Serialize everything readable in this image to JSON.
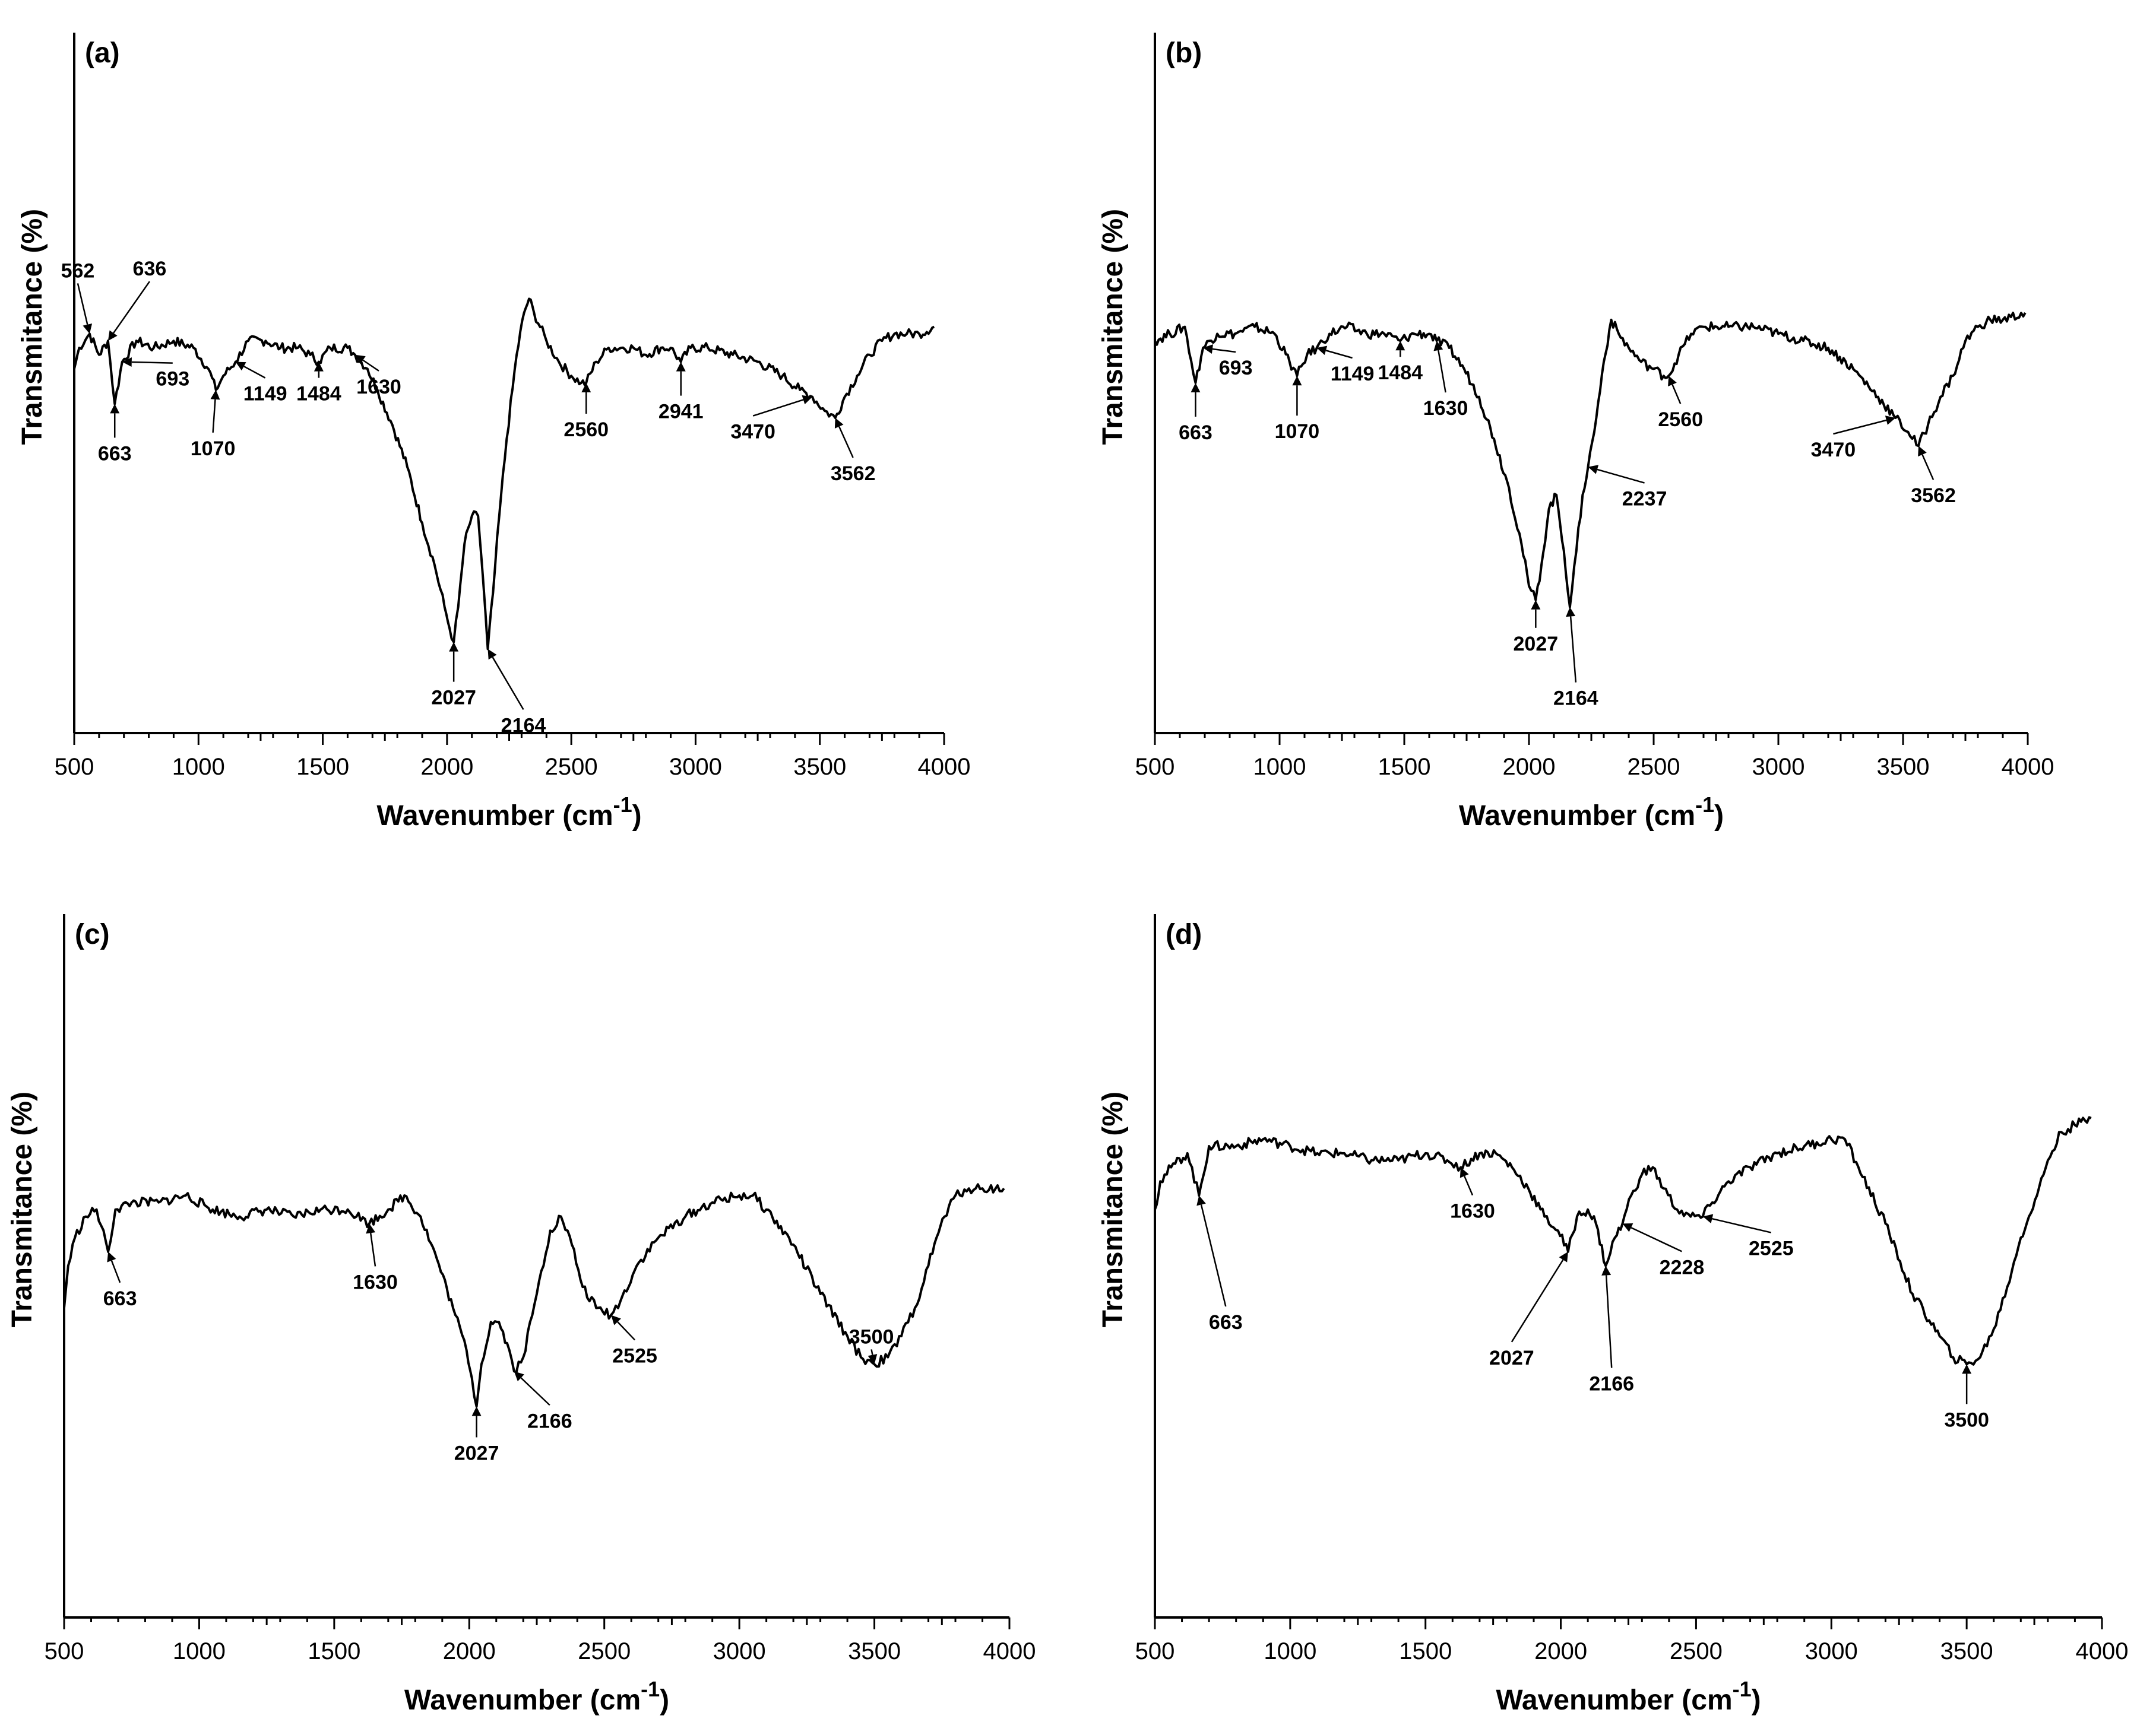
{
  "chart_data": [
    {
      "type": "line",
      "panel_label": "(a)",
      "xlabel": "Wavenumber (cm",
      "xlabel_sup": "-1",
      "xlabel_close": ")",
      "ylabel": "Transmitance (%)",
      "xlim": [
        500,
        4000
      ],
      "ylim": [
        0,
        100
      ],
      "x_ticks": [
        "500",
        "1000",
        "1500",
        "2000",
        "2500",
        "3000",
        "3500",
        "4000"
      ],
      "series": [
        {
          "name": "spectrum (a)",
          "x": [
            500,
            520,
            562,
            600,
            636,
            663,
            693,
            750,
            820,
            900,
            980,
            1040,
            1070,
            1100,
            1149,
            1200,
            1270,
            1330,
            1400,
            1450,
            1484,
            1530,
            1600,
            1630,
            1680,
            1720,
            1780,
            1840,
            1900,
            1950,
            1990,
            2010,
            2027,
            2045,
            2070,
            2100,
            2125,
            2145,
            2164,
            2185,
            2210,
            2240,
            2280,
            2310,
            2330,
            2350,
            2400,
            2450,
            2500,
            2540,
            2560,
            2600,
            2650,
            2700,
            2750,
            2800,
            2860,
            2900,
            2941,
            2980,
            3050,
            3150,
            3250,
            3350,
            3420,
            3470,
            3520,
            3562,
            3600,
            3650,
            3700,
            3750,
            3800,
            3850,
            3900,
            3960
          ],
          "y": [
            52,
            55,
            57,
            54,
            56,
            47,
            53,
            56,
            55,
            56,
            55,
            52,
            49,
            51,
            53,
            56,
            56,
            55,
            55,
            54,
            53,
            55,
            55,
            54,
            52,
            49,
            44,
            38,
            30,
            24,
            18,
            15,
            13,
            18,
            27,
            31,
            31,
            22,
            12,
            20,
            31,
            42,
            54,
            60,
            62,
            60,
            56,
            53,
            51,
            50,
            50,
            53,
            55,
            55,
            55,
            54,
            55,
            55,
            53,
            55,
            55,
            54,
            53,
            51,
            49,
            48,
            46,
            45,
            48,
            51,
            54,
            56,
            57,
            57,
            57,
            58
          ]
        }
      ],
      "annotations": [
        {
          "label": "562",
          "x": 562,
          "y": 57
        },
        {
          "label": "636",
          "x": 636,
          "y": 56
        },
        {
          "label": "663",
          "x": 663,
          "y": 47
        },
        {
          "label": "693",
          "x": 693,
          "y": 53
        },
        {
          "label": "1070",
          "x": 1070,
          "y": 49
        },
        {
          "label": "1149",
          "x": 1149,
          "y": 53
        },
        {
          "label": "1484",
          "x": 1484,
          "y": 53
        },
        {
          "label": "1630",
          "x": 1630,
          "y": 54
        },
        {
          "label": "2027",
          "x": 2027,
          "y": 13
        },
        {
          "label": "2164",
          "x": 2164,
          "y": 12
        },
        {
          "label": "2560",
          "x": 2560,
          "y": 50
        },
        {
          "label": "2941",
          "x": 2941,
          "y": 53
        },
        {
          "label": "3470",
          "x": 3470,
          "y": 48
        },
        {
          "label": "3562",
          "x": 3562,
          "y": 45
        }
      ]
    },
    {
      "type": "line",
      "panel_label": "(b)",
      "xlabel": "Wavenumber (cm",
      "xlabel_sup": "-1",
      "xlabel_close": ")",
      "ylabel": "Transmitance (%)",
      "xlim": [
        500,
        4000
      ],
      "ylim": [
        0,
        100
      ],
      "x_ticks": [
        "500",
        "1000",
        "1500",
        "2000",
        "2500",
        "3000",
        "3500",
        "4000"
      ],
      "series": [
        {
          "name": "spectrum (b)",
          "x": [
            500,
            560,
            620,
            663,
            693,
            750,
            820,
            900,
            980,
            1040,
            1070,
            1110,
            1149,
            1200,
            1270,
            1350,
            1420,
            1484,
            1540,
            1600,
            1630,
            1680,
            1740,
            1800,
            1860,
            1920,
            1970,
            2000,
            2027,
            2050,
            2080,
            2110,
            2140,
            2164,
            2190,
            2215,
            2237,
            2270,
            2300,
            2330,
            2360,
            2400,
            2450,
            2500,
            2540,
            2560,
            2600,
            2650,
            2700,
            2800,
            2900,
            3000,
            3100,
            3200,
            3300,
            3400,
            3470,
            3520,
            3562,
            3600,
            3650,
            3700,
            3750,
            3800,
            3850,
            3900,
            3990
          ],
          "y": [
            56,
            57,
            58,
            50,
            55,
            57,
            57,
            58,
            57,
            53,
            51,
            54,
            55,
            57,
            58,
            57,
            57,
            56,
            57,
            57,
            56,
            55,
            52,
            48,
            42,
            35,
            27,
            21,
            19,
            24,
            32,
            34,
            26,
            18,
            26,
            34,
            38,
            45,
            53,
            59,
            57,
            55,
            53,
            52,
            51,
            51,
            54,
            57,
            58,
            58,
            58,
            57,
            56,
            55,
            52,
            48,
            45,
            43,
            41,
            44,
            48,
            51,
            56,
            58,
            59,
            59,
            60
          ]
        }
      ],
      "annotations": [
        {
          "label": "663",
          "x": 663,
          "y": 50
        },
        {
          "label": "693",
          "x": 693,
          "y": 55
        },
        {
          "label": "1070",
          "x": 1070,
          "y": 51
        },
        {
          "label": "1149",
          "x": 1149,
          "y": 55
        },
        {
          "label": "1484",
          "x": 1484,
          "y": 56
        },
        {
          "label": "1630",
          "x": 1630,
          "y": 56
        },
        {
          "label": "2027",
          "x": 2027,
          "y": 19
        },
        {
          "label": "2164",
          "x": 2164,
          "y": 18
        },
        {
          "label": "2237",
          "x": 2237,
          "y": 38
        },
        {
          "label": "2560",
          "x": 2560,
          "y": 51
        },
        {
          "label": "3470",
          "x": 3470,
          "y": 45
        },
        {
          "label": "3562",
          "x": 3562,
          "y": 41
        }
      ]
    },
    {
      "type": "line",
      "panel_label": "(c)",
      "xlabel": "Wavenumber (cm",
      "xlabel_sup": "-1",
      "xlabel_close": ")",
      "ylabel": "Transmitance (%)",
      "xlim": [
        500,
        4000
      ],
      "ylim": [
        0,
        100
      ],
      "x_ticks": [
        "500",
        "1000",
        "1500",
        "2000",
        "2500",
        "3000",
        "3500",
        "4000"
      ],
      "series": [
        {
          "name": "spectrum (c)",
          "x": [
            500,
            515,
            540,
            580,
            620,
            663,
            690,
            750,
            850,
            950,
            1050,
            1150,
            1250,
            1350,
            1450,
            1550,
            1630,
            1700,
            1760,
            1820,
            1880,
            1940,
            1990,
            2010,
            2027,
            2045,
            2080,
            2110,
            2140,
            2166,
            2200,
            2250,
            2300,
            2340,
            2380,
            2420,
            2470,
            2525,
            2560,
            2620,
            2700,
            2800,
            2900,
            3000,
            3050,
            3100,
            3200,
            3300,
            3400,
            3450,
            3500,
            3550,
            3600,
            3650,
            3700,
            3730,
            3760,
            3800,
            3850,
            3900,
            3980
          ],
          "y": [
            44,
            50,
            54,
            57,
            58,
            52,
            58,
            59,
            59,
            60,
            58,
            57,
            58,
            57,
            58,
            58,
            56,
            58,
            60,
            57,
            51,
            44,
            38,
            34,
            30,
            36,
            42,
            42,
            39,
            35,
            37,
            46,
            55,
            57,
            53,
            47,
            44,
            43,
            45,
            50,
            54,
            57,
            59,
            60,
            60,
            58,
            53,
            46,
            40,
            37,
            36,
            37,
            40,
            44,
            50,
            54,
            57,
            60,
            61,
            61,
            61
          ]
        }
      ],
      "annotations": [
        {
          "label": "663",
          "x": 663,
          "y": 52
        },
        {
          "label": "1630",
          "x": 1630,
          "y": 56
        },
        {
          "label": "2027",
          "x": 2027,
          "y": 30
        },
        {
          "label": "2166",
          "x": 2166,
          "y": 35
        },
        {
          "label": "2525",
          "x": 2525,
          "y": 43
        },
        {
          "label": "3500",
          "x": 3500,
          "y": 36
        }
      ]
    },
    {
      "type": "line",
      "panel_label": "(d)",
      "xlabel": "Wavenumber (cm",
      "xlabel_sup": "-1",
      "xlabel_close": ")",
      "ylabel": "Transmitance (%)",
      "xlim": [
        500,
        4000
      ],
      "ylim": [
        0,
        100
      ],
      "x_ticks": [
        "500",
        "1000",
        "1500",
        "2000",
        "2500",
        "3000",
        "3500",
        "4000"
      ],
      "series": [
        {
          "name": "spectrum (d)",
          "x": [
            500,
            520,
            560,
            620,
            663,
            700,
            800,
            900,
            1000,
            1100,
            1200,
            1300,
            1400,
            1500,
            1580,
            1630,
            1700,
            1760,
            1820,
            1880,
            1940,
            1990,
            2027,
            2060,
            2100,
            2130,
            2166,
            2200,
            2228,
            2260,
            2300,
            2340,
            2380,
            2430,
            2480,
            2525,
            2560,
            2620,
            2700,
            2800,
            2900,
            3000,
            3050,
            3100,
            3200,
            3300,
            3400,
            3450,
            3500,
            3550,
            3600,
            3650,
            3700,
            3730,
            3760,
            3800,
            3850,
            3900,
            3960
          ],
          "y": [
            58,
            62,
            64,
            66,
            60,
            67,
            67,
            68,
            67,
            66,
            66,
            65,
            65,
            66,
            65,
            64,
            66,
            66,
            64,
            61,
            57,
            55,
            52,
            57,
            58,
            56,
            50,
            54,
            56,
            60,
            63,
            64,
            61,
            58,
            57,
            57,
            59,
            62,
            64,
            66,
            67,
            68,
            68,
            64,
            56,
            46,
            40,
            37,
            36,
            37,
            41,
            47,
            54,
            57,
            60,
            65,
            69,
            70,
            71
          ]
        }
      ],
      "annotations": [
        {
          "label": "663",
          "x": 663,
          "y": 60
        },
        {
          "label": "1630",
          "x": 1630,
          "y": 64
        },
        {
          "label": "2027",
          "x": 2027,
          "y": 52
        },
        {
          "label": "2166",
          "x": 2166,
          "y": 50
        },
        {
          "label": "2228",
          "x": 2228,
          "y": 56
        },
        {
          "label": "2525",
          "x": 2525,
          "y": 57
        },
        {
          "label": "3500",
          "x": 3500,
          "y": 36
        }
      ]
    }
  ]
}
